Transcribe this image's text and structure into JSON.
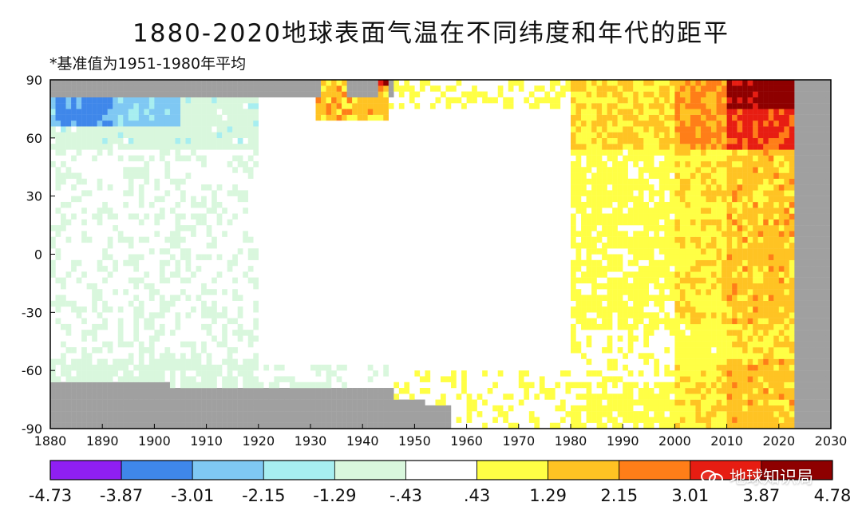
{
  "title": "1880-2020地球表面气温在不同纬度和年代的距平",
  "subtitle": "*基准值为1951-1980年平均",
  "watermark": "地球知识局",
  "chart_data": {
    "type": "heatmap",
    "title": "1880-2020地球表面气温在不同纬度和年代的距平",
    "subtitle": "*基准值为1951-1980年平均",
    "xlabel": "",
    "ylabel": "",
    "xlim": [
      1880,
      2030
    ],
    "ylim": [
      -90,
      90
    ],
    "x_ticks": [
      "1880",
      "1890",
      "1900",
      "1910",
      "1920",
      "1930",
      "1940",
      "1950",
      "1960",
      "1970",
      "1980",
      "1990",
      "2000",
      "2010",
      "2020",
      "2030"
    ],
    "y_ticks": [
      "90",
      "60",
      "30",
      "0",
      "-30",
      "-60",
      "-90"
    ],
    "grid": false,
    "colorbar": {
      "bounds": [
        -4.73,
        -3.87,
        -3.01,
        -2.15,
        -1.29,
        -0.43,
        0.43,
        1.29,
        2.15,
        3.01,
        3.87,
        4.78
      ],
      "labels": [
        "-4.73",
        "-3.87",
        "-3.01",
        "-2.15",
        "-1.29",
        "-.43",
        ".43",
        "1.29",
        "2.15",
        "3.01",
        "3.87",
        "4.78"
      ],
      "colors": [
        "#8f1ff2",
        "#3f87ea",
        "#7fc8f3",
        "#a7eef0",
        "#d9f7dd",
        "#ffffff",
        "#ffff45",
        "#ffc323",
        "#ff7e18",
        "#e71d12",
        "#8e0000"
      ]
    },
    "missing_color": "#a0a0a0"
  }
}
